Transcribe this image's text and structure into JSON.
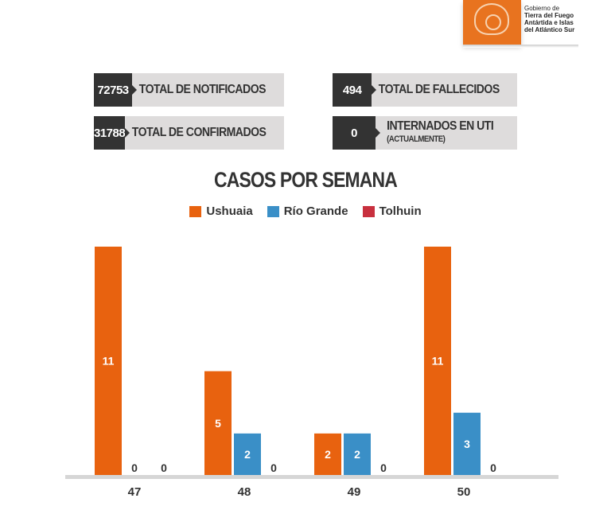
{
  "logo": {
    "lines": [
      "Gobierno de",
      "Tierra del Fuego",
      "Antártida e Islas",
      "del Atlántico Sur"
    ]
  },
  "stats": [
    {
      "value": "72753",
      "label": "TOTAL DE NOTIFICADOS"
    },
    {
      "value": "31788",
      "label": "TOTAL DE CONFIRMADOS"
    },
    {
      "value": "494",
      "label": "TOTAL DE FALLECIDOS"
    },
    {
      "value": "0",
      "label": "INTERNADOS EN UTI",
      "sublabel": "(ACTUALMENTE)"
    }
  ],
  "chart_data": {
    "type": "bar",
    "title": "CASOS POR SEMANA",
    "categories": [
      "47",
      "48",
      "49",
      "50"
    ],
    "series": [
      {
        "name": "Ushuaia",
        "color": "#e8620f",
        "values": [
          11,
          5,
          2,
          11
        ]
      },
      {
        "name": "Río Grande",
        "color": "#3a8fc7",
        "values": [
          0,
          2,
          2,
          3
        ]
      },
      {
        "name": "Tolhuin",
        "color": "#c8303e",
        "values": [
          0,
          0,
          0,
          0
        ]
      }
    ],
    "ylim": [
      0,
      11
    ],
    "legend": "top-center",
    "grid": false,
    "data_labels": true
  }
}
